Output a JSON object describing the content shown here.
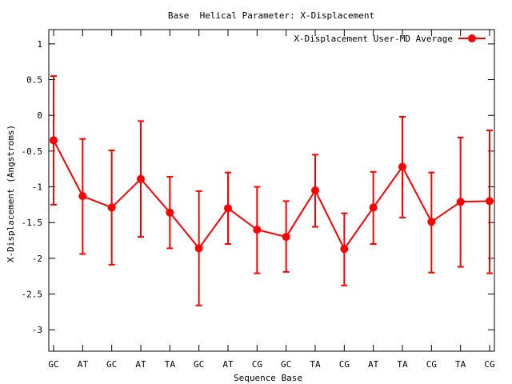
{
  "chart_data": {
    "type": "line",
    "title": "Base  Helical Parameter: X-Displacement",
    "xlabel": "Sequence Base",
    "ylabel": "X-Displacement (Angstroms)",
    "ylim": [
      -3.3,
      1.2
    ],
    "yticks": [
      1,
      0.5,
      0,
      -0.5,
      -1,
      -1.5,
      -2,
      -2.5,
      -3
    ],
    "ytick_labels": [
      "1",
      "0.5",
      "0",
      "-0.5",
      "-1",
      "-1.5",
      "-2",
      "-2.5",
      "-3"
    ],
    "grid": false,
    "legend_position": "top-right",
    "categories": [
      "GC",
      "AT",
      "GC",
      "AT",
      "TA",
      "GC",
      "AT",
      "CG",
      "GC",
      "TA",
      "CG",
      "AT",
      "TA",
      "CG",
      "TA",
      "CG"
    ],
    "series": [
      {
        "name": "X-Displacement User-MD Average",
        "color": "#ff0000",
        "values": [
          -0.35,
          -1.13,
          -1.29,
          -0.89,
          -1.36,
          -1.86,
          -1.3,
          -1.6,
          -1.7,
          -1.05,
          -1.87,
          -1.29,
          -0.72,
          -1.49,
          -1.21,
          -1.2
        ],
        "error_low": [
          -1.25,
          -1.94,
          -2.09,
          -1.7,
          -1.86,
          -2.66,
          -1.8,
          -2.21,
          -2.19,
          -1.56,
          -2.38,
          -1.8,
          -1.43,
          -2.2,
          -2.12,
          -2.21
        ],
        "error_high": [
          0.55,
          -0.33,
          -0.49,
          -0.08,
          -0.86,
          -1.06,
          -0.8,
          -1.0,
          -1.2,
          -0.55,
          -1.37,
          -0.79,
          -0.02,
          -0.8,
          -0.31,
          -0.21
        ]
      }
    ]
  }
}
